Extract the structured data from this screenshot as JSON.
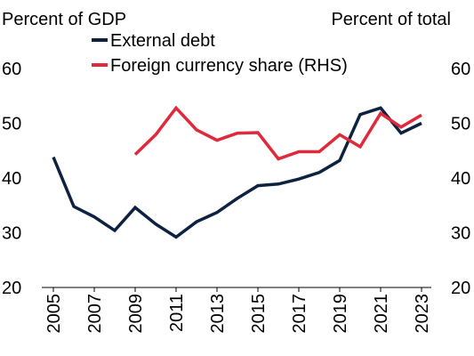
{
  "chart_data": {
    "type": "line",
    "left_axis_title": "Percent of GDP",
    "right_axis_title": "Percent of total",
    "x": [
      2005,
      2006,
      2007,
      2008,
      2009,
      2010,
      2011,
      2012,
      2013,
      2014,
      2015,
      2016,
      2017,
      2018,
      2019,
      2020,
      2021,
      2022,
      2023
    ],
    "x_tick_labels": [
      "2005",
      "2007",
      "2009",
      "2011",
      "2013",
      "2015",
      "2017",
      "2019",
      "2021",
      "2023"
    ],
    "y_ticks": [
      "20",
      "30",
      "40",
      "50",
      "60"
    ],
    "ylim_left": [
      20,
      60
    ],
    "ylim_right": [
      20,
      60
    ],
    "grid": false,
    "legend_position": "top-left",
    "series": [
      {
        "name": "External debt",
        "axis": "left",
        "color": "#0d2140",
        "values": [
          43.8,
          34.8,
          32.9,
          30.4,
          34.6,
          31.6,
          29.2,
          32.0,
          33.7,
          36.3,
          38.6,
          38.9,
          39.8,
          41.0,
          43.2,
          51.6,
          52.8,
          48.2,
          50.0
        ]
      },
      {
        "name": "Foreign currency share (RHS)",
        "axis": "right",
        "color": "#e0293b",
        "values": [
          null,
          null,
          null,
          null,
          44.3,
          47.9,
          52.8,
          48.8,
          46.9,
          48.2,
          48.3,
          43.5,
          44.8,
          44.8,
          47.9,
          45.7,
          51.8,
          49.3,
          51.5
        ]
      }
    ]
  }
}
